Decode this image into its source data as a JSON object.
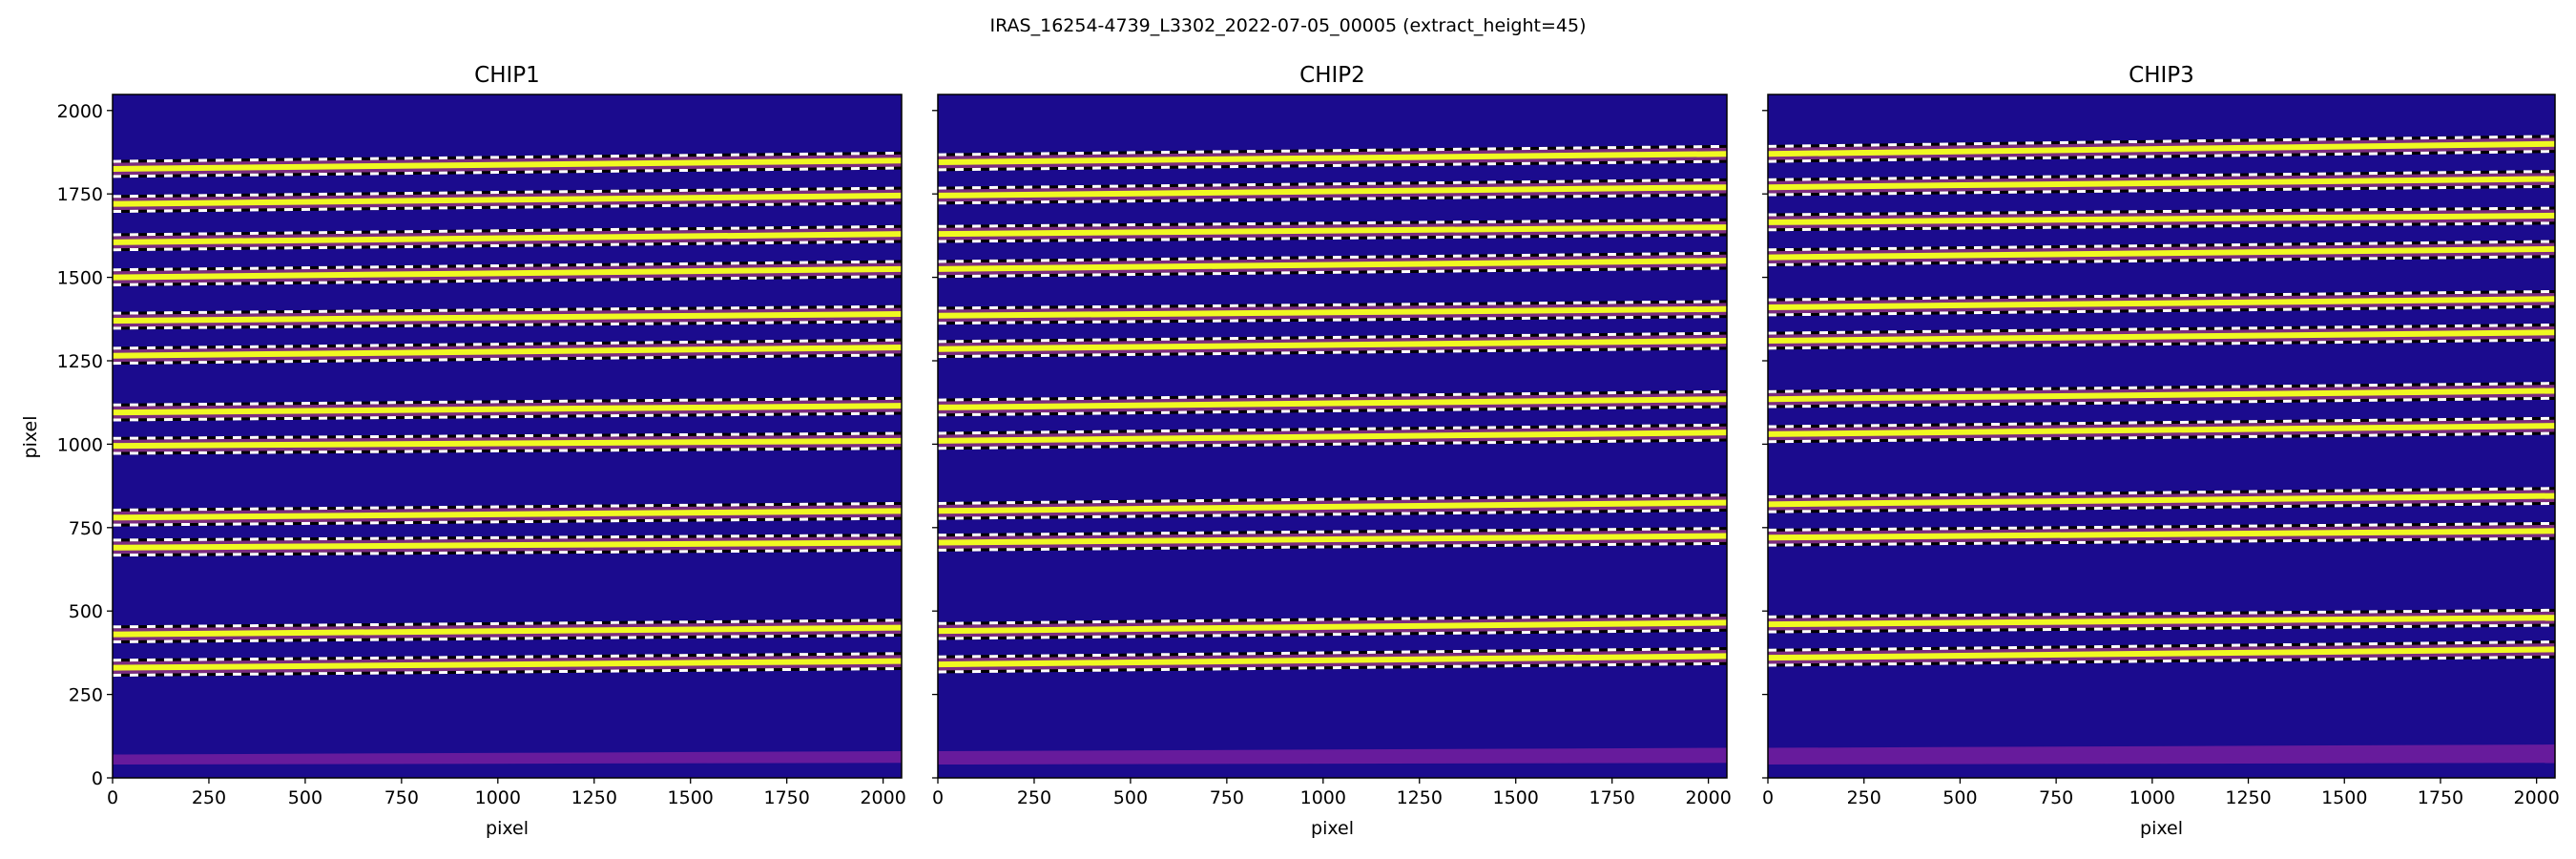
{
  "chart_data": {
    "type": "heatmap",
    "title": "IRAS_16254-4739_L3302_2022-07-05_00005  (extract_height=45)",
    "extract_height": 45,
    "colormap": "plasma",
    "colors": {
      "background": "#1b0b8e",
      "trace": "#f0f921",
      "trace_glow": "#cc4778",
      "band": "#7a1fa0"
    },
    "xlim": [
      0,
      2048
    ],
    "ylim": [
      0,
      2048
    ],
    "xticks": [
      0,
      250,
      500,
      750,
      1000,
      1250,
      1500,
      1750,
      2000
    ],
    "yticks": [
      0,
      250,
      500,
      750,
      1000,
      1250,
      1500,
      1750,
      2000
    ],
    "ylabel": "pixel",
    "panels": [
      {
        "title": "CHIP1",
        "xlabel": "pixel",
        "trace_centers_left_right": [
          [
            1825,
            1850
          ],
          [
            1720,
            1745
          ],
          [
            1605,
            1630
          ],
          [
            1500,
            1525
          ],
          [
            1370,
            1390
          ],
          [
            1265,
            1290
          ],
          [
            1095,
            1115
          ],
          [
            995,
            1010
          ],
          [
            780,
            800
          ],
          [
            690,
            705
          ],
          [
            430,
            450
          ],
          [
            330,
            350
          ]
        ]
      },
      {
        "title": "CHIP2",
        "xlabel": "pixel",
        "trace_centers_left_right": [
          [
            1845,
            1870
          ],
          [
            1745,
            1770
          ],
          [
            1630,
            1650
          ],
          [
            1525,
            1550
          ],
          [
            1385,
            1405
          ],
          [
            1285,
            1310
          ],
          [
            1110,
            1135
          ],
          [
            1010,
            1035
          ],
          [
            800,
            825
          ],
          [
            705,
            725
          ],
          [
            440,
            465
          ],
          [
            340,
            365
          ]
        ]
      },
      {
        "title": "CHIP3",
        "xlabel": "pixel",
        "trace_centers_left_right": [
          [
            1870,
            1900
          ],
          [
            1770,
            1795
          ],
          [
            1665,
            1685
          ],
          [
            1560,
            1585
          ],
          [
            1410,
            1435
          ],
          [
            1310,
            1335
          ],
          [
            1135,
            1160
          ],
          [
            1030,
            1055
          ],
          [
            820,
            845
          ],
          [
            720,
            740
          ],
          [
            460,
            480
          ],
          [
            360,
            385
          ]
        ]
      }
    ]
  }
}
